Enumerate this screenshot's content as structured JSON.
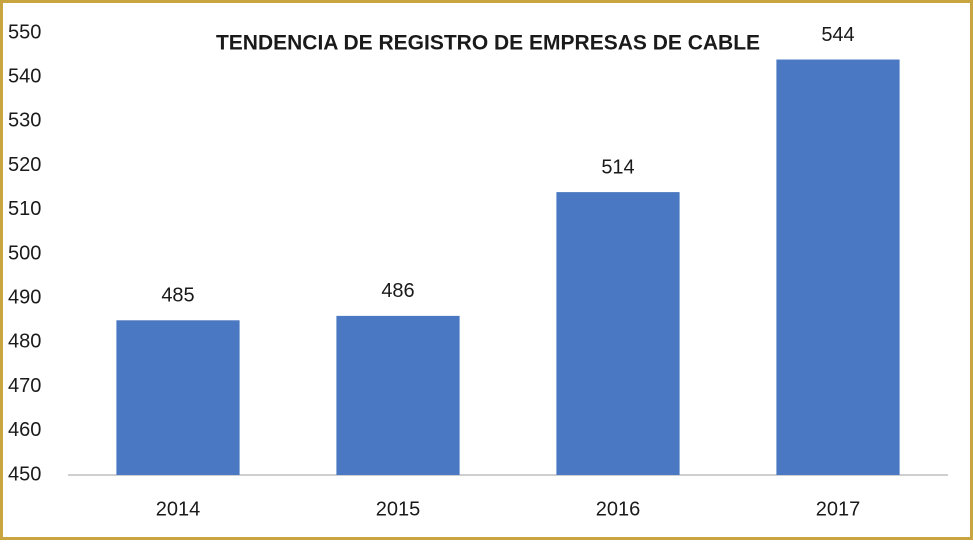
{
  "chart_data": {
    "type": "bar",
    "title": "TENDENCIA DE REGISTRO DE EMPRESAS DE CABLE",
    "categories": [
      "2014",
      "2015",
      "2016",
      "2017"
    ],
    "values": [
      485,
      486,
      514,
      544
    ],
    "color": "#4a78c2",
    "ylim": [
      450,
      550
    ],
    "yticks": [
      450,
      460,
      470,
      480,
      490,
      500,
      510,
      520,
      530,
      540,
      550
    ],
    "grid": false
  }
}
